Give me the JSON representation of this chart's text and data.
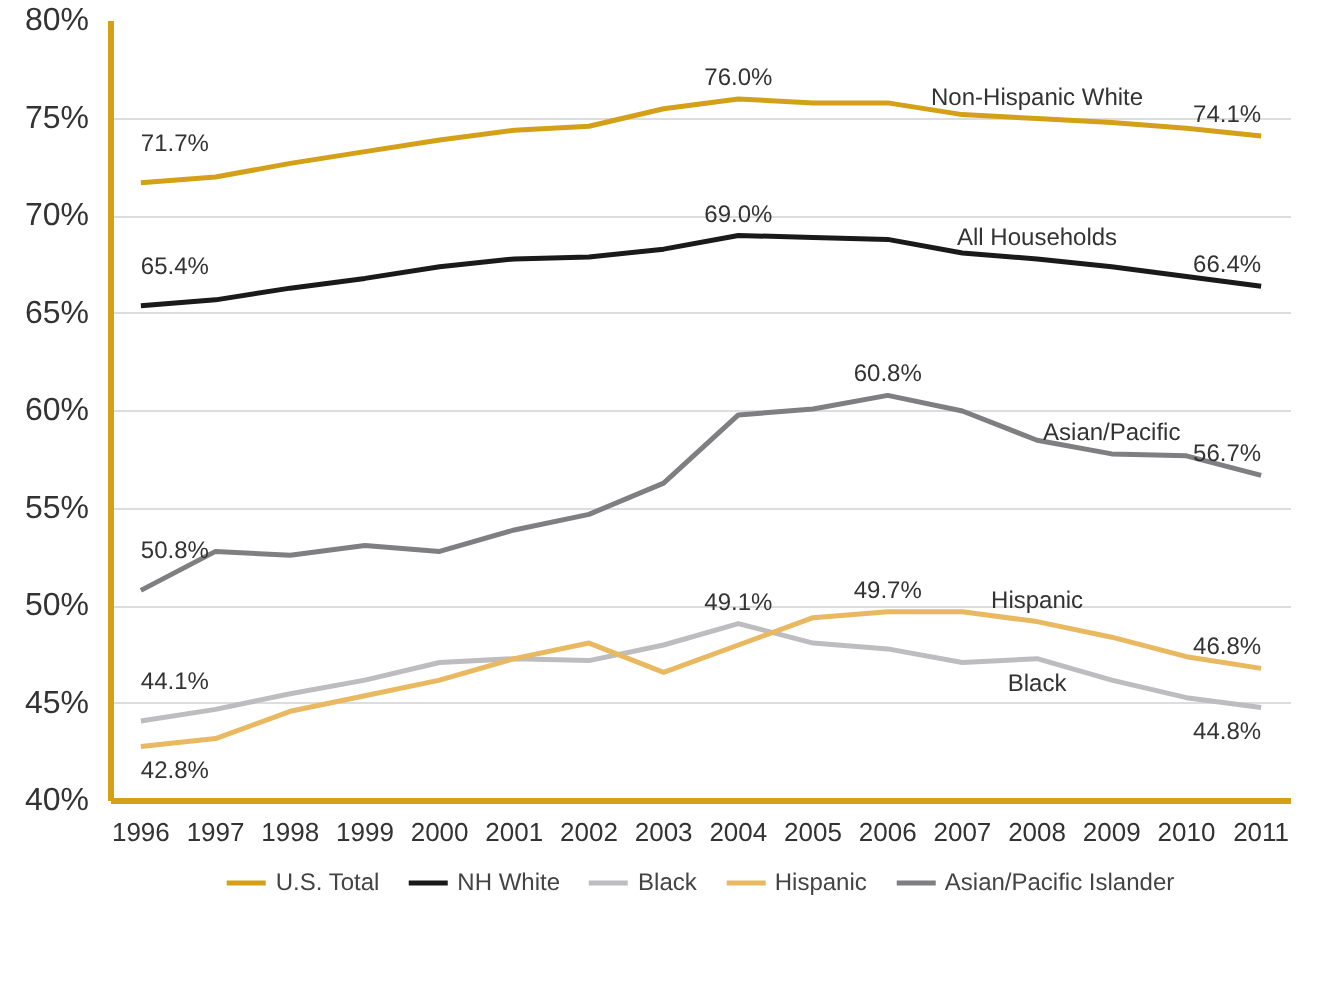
{
  "chart_data": {
    "type": "line",
    "x": [
      1996,
      1997,
      1998,
      1999,
      2000,
      2001,
      2002,
      2003,
      2004,
      2005,
      2006,
      2007,
      2008,
      2009,
      2010,
      2011
    ],
    "xlim": [
      1995.6,
      2011.4
    ],
    "xticks": [
      1996,
      1997,
      1998,
      1999,
      2000,
      2001,
      2002,
      2003,
      2004,
      2005,
      2006,
      2007,
      2008,
      2009,
      2010,
      2011
    ],
    "ylim": [
      40,
      80
    ],
    "yticks": [
      {
        "value": 40,
        "label": "40%"
      },
      {
        "value": 45,
        "label": "45%"
      },
      {
        "value": 50,
        "label": "50%"
      },
      {
        "value": 55,
        "label": "55%"
      },
      {
        "value": 60,
        "label": "60%"
      },
      {
        "value": 65,
        "label": "65%"
      },
      {
        "value": 70,
        "label": "70%"
      },
      {
        "value": 75,
        "label": "75%"
      },
      {
        "value": 80,
        "label": "80%"
      }
    ],
    "grid": "y",
    "legend": "bottom",
    "marker": "none",
    "line_style": "solid",
    "series": [
      {
        "name": "U.S. Total",
        "color": "#d4a017",
        "values": [
          71.7,
          72.0,
          72.7,
          73.3,
          73.9,
          74.4,
          74.6,
          75.5,
          76.0,
          75.8,
          75.8,
          75.2,
          75.0,
          74.8,
          74.5,
          74.1
        ]
      },
      {
        "name": "NH White",
        "color": "#1a1a1a",
        "values": [
          65.4,
          65.7,
          66.3,
          66.8,
          67.4,
          67.8,
          67.9,
          68.3,
          69.0,
          68.9,
          68.8,
          68.1,
          67.8,
          67.4,
          66.9,
          66.4
        ]
      },
      {
        "name": "Black",
        "color": "#bdbdc0",
        "values": [
          44.1,
          44.7,
          45.5,
          46.2,
          47.1,
          47.3,
          47.2,
          48.0,
          49.1,
          48.1,
          47.8,
          47.1,
          47.3,
          46.2,
          45.3,
          44.8
        ]
      },
      {
        "name": "Hispanic",
        "color": "#e8b960",
        "values": [
          42.8,
          43.2,
          44.6,
          45.4,
          46.2,
          47.3,
          48.1,
          46.6,
          48.0,
          49.4,
          49.7,
          49.7,
          49.2,
          48.4,
          47.4,
          46.8
        ]
      },
      {
        "name": "Asian/Pacific Islander",
        "color": "#7f7f82",
        "values": [
          50.8,
          52.8,
          52.6,
          53.1,
          52.8,
          53.9,
          54.7,
          56.3,
          59.8,
          60.1,
          60.8,
          60.0,
          58.5,
          57.8,
          57.7,
          56.7
        ]
      }
    ],
    "annotations": [
      {
        "text": "71.7%",
        "x": 1996,
        "y": 71.7
      },
      {
        "text": "76.0%",
        "x": 2004,
        "y": 76.0
      },
      {
        "text": "74.1%",
        "x": 2011,
        "y": 74.1
      },
      {
        "text": "Non-Hispanic White",
        "x": 2008,
        "y": 75.0
      },
      {
        "text": "65.4%",
        "x": 1996,
        "y": 65.4
      },
      {
        "text": "69.0%",
        "x": 2004,
        "y": 69.0
      },
      {
        "text": "66.4%",
        "x": 2011,
        "y": 66.4
      },
      {
        "text": "All Households",
        "x": 2008,
        "y": 67.8
      },
      {
        "text": "50.8%",
        "x": 1996,
        "y": 50.8
      },
      {
        "text": "60.8%",
        "x": 2006,
        "y": 60.8
      },
      {
        "text": "56.7%",
        "x": 2011,
        "y": 56.7
      },
      {
        "text": "Asian/Pacific",
        "x": 2009,
        "y": 57.8
      },
      {
        "text": "44.1%",
        "x": 1996,
        "y": 44.1
      },
      {
        "text": "49.1%",
        "x": 2004,
        "y": 49.1
      },
      {
        "text": "44.8%",
        "x": 2011,
        "y": 44.8
      },
      {
        "text": "Black",
        "x": 2008,
        "y": 47.3
      },
      {
        "text": "42.8%",
        "x": 1996,
        "y": 42.8
      },
      {
        "text": "49.7%",
        "x": 2006,
        "y": 49.7
      },
      {
        "text": "46.8%",
        "x": 2011,
        "y": 46.8
      },
      {
        "text": "Hispanic",
        "x": 2008,
        "y": 49.2
      }
    ]
  }
}
